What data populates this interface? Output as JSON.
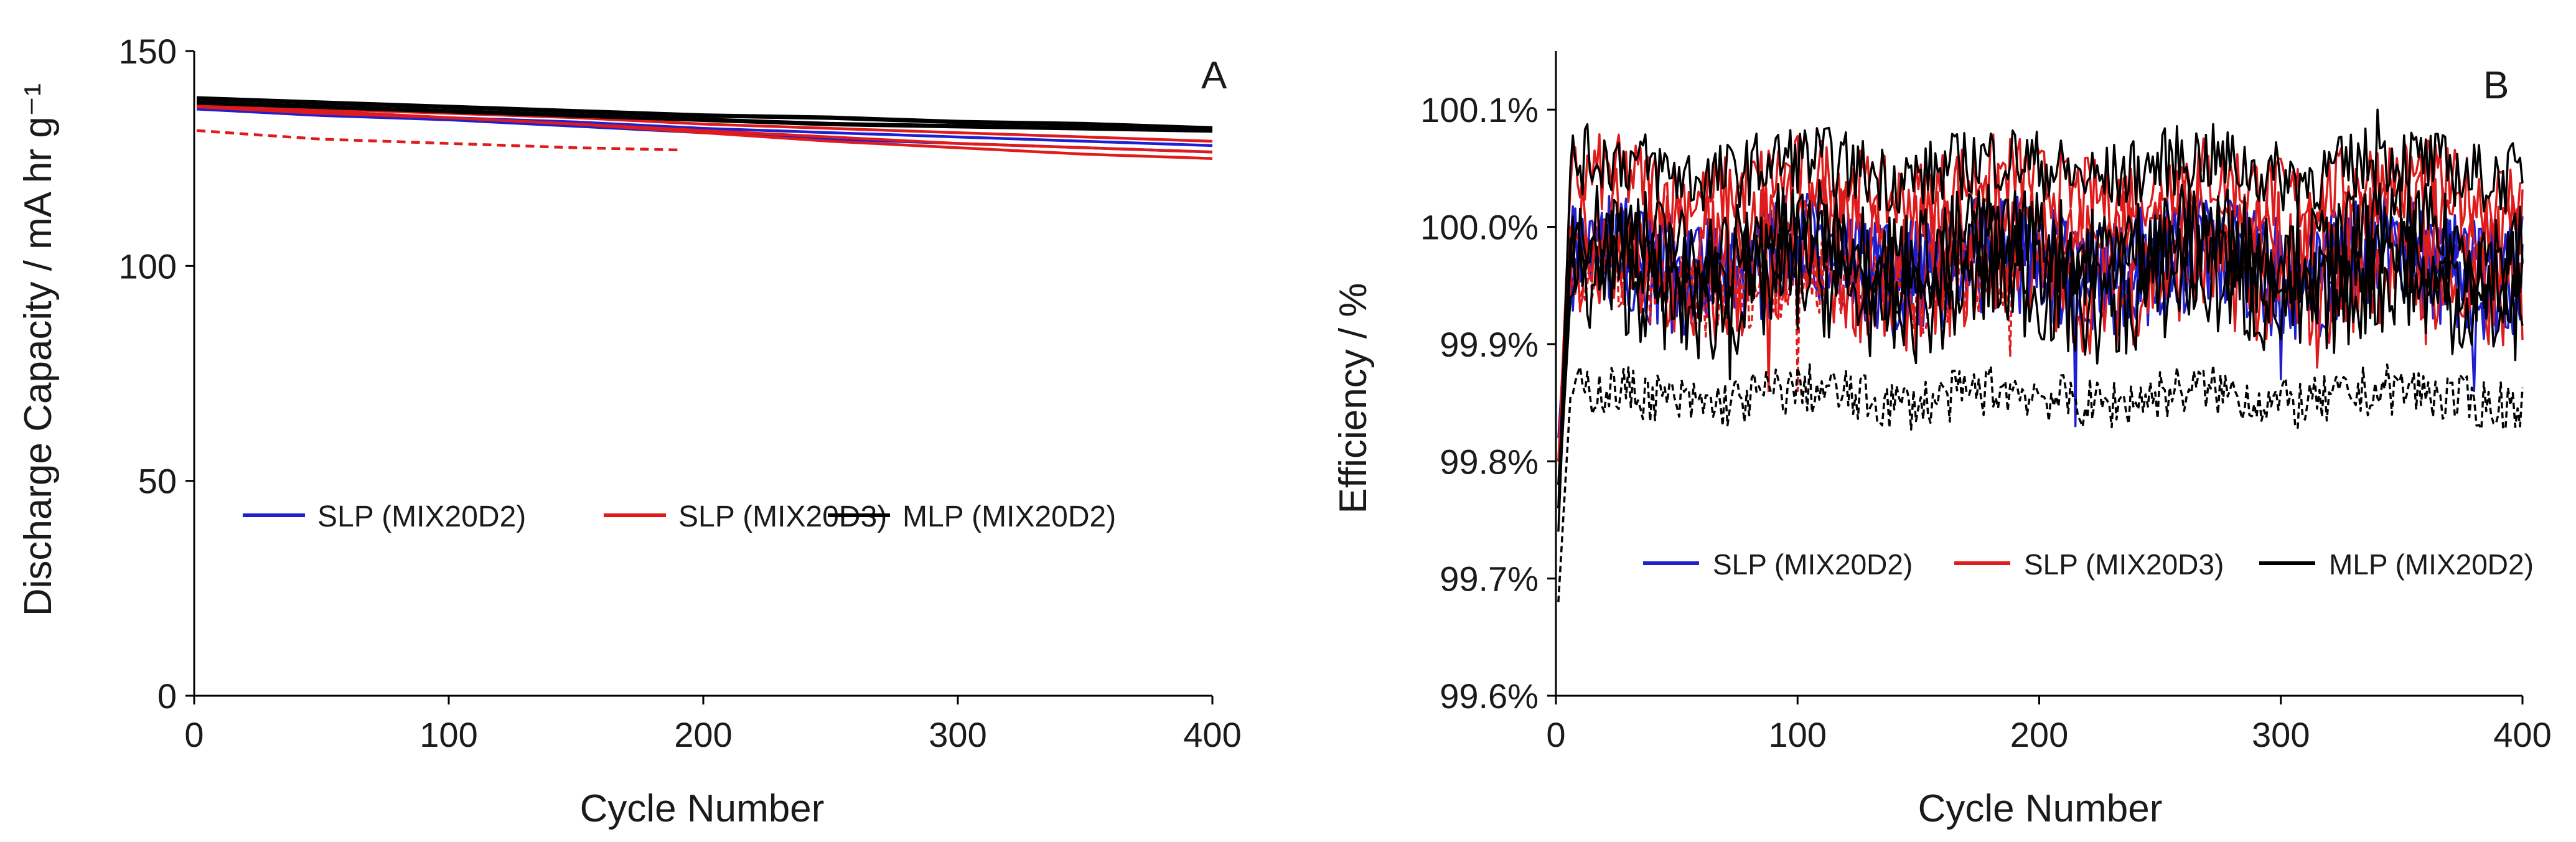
{
  "chart_data": [
    {
      "type": "line",
      "panel_label": "A",
      "xlabel": "Cycle Number",
      "ylabel": "Discharge Capacity / mA hr g⁻¹",
      "xlim": [
        0,
        400
      ],
      "ylim": [
        0,
        150
      ],
      "xticks": [
        0,
        100,
        200,
        300,
        400
      ],
      "yticks": [
        0,
        50,
        100,
        150
      ],
      "legend": {
        "placement": "center-left",
        "entries": [
          {
            "label": "SLP (MIX20D2)",
            "color": "#1f1fd1"
          },
          {
            "label": "SLP (MIX20D3)",
            "color": "#e01b1b"
          },
          {
            "label": "MLP (MIX20D2)",
            "color": "#000000"
          }
        ]
      },
      "series": [
        {
          "name": "SLP (MIX20D2)",
          "color": "#1f1fd1",
          "style": "solid",
          "x": [
            1,
            50,
            100,
            150,
            200,
            250,
            300,
            350,
            400
          ],
          "y": [
            136.5,
            135.0,
            134.0,
            132.5,
            131.0,
            129.5,
            128.5,
            127.5,
            126.5
          ]
        },
        {
          "name": "SLP (MIX20D2)",
          "color": "#1f1fd1",
          "style": "solid",
          "x": [
            1,
            50,
            100,
            150,
            200,
            250,
            300,
            350,
            400
          ],
          "y": [
            137.0,
            136.0,
            134.5,
            133.5,
            132.0,
            131.0,
            130.0,
            129.0,
            128.0
          ]
        },
        {
          "name": "SLP (MIX20D3)",
          "color": "#e01b1b",
          "style": "solid",
          "x": [
            1,
            50,
            100,
            150,
            200,
            250,
            300,
            350,
            400
          ],
          "y": [
            137.5,
            136.0,
            134.5,
            133.0,
            131.0,
            129.0,
            127.5,
            126.0,
            125.0
          ]
        },
        {
          "name": "SLP (MIX20D3)",
          "color": "#e01b1b",
          "style": "solid",
          "x": [
            1,
            50,
            100,
            150,
            200,
            250,
            300,
            350,
            400
          ],
          "y": [
            138.0,
            136.5,
            135.5,
            134.5,
            133.0,
            132.0,
            131.0,
            130.0,
            129.0
          ]
        },
        {
          "name": "SLP (MIX20D3)",
          "color": "#e01b1b",
          "style": "solid",
          "x": [
            1,
            50,
            100,
            150,
            200,
            250,
            300,
            350,
            400
          ],
          "y": [
            137.0,
            135.5,
            134.5,
            133.0,
            131.5,
            130.0,
            128.5,
            127.5,
            126.5
          ]
        },
        {
          "name": "SLP (MIX20D3)",
          "color": "#e01b1b",
          "style": "dashed",
          "x": [
            1,
            25,
            50,
            100,
            150,
            190
          ],
          "y": [
            131.5,
            130.5,
            129.5,
            128.5,
            127.5,
            127.0
          ]
        },
        {
          "name": "MLP (MIX20D2)",
          "color": "#000000",
          "style": "solid",
          "x": [
            1,
            50,
            100,
            150,
            200,
            250,
            300,
            350,
            400
          ],
          "y": [
            139.0,
            138.0,
            137.0,
            136.0,
            135.0,
            134.5,
            133.5,
            133.0,
            132.0
          ]
        },
        {
          "name": "MLP (MIX20D2)",
          "color": "#000000",
          "style": "solid",
          "x": [
            1,
            50,
            100,
            150,
            200,
            250,
            300,
            350,
            400
          ],
          "y": [
            138.0,
            137.0,
            136.0,
            135.0,
            134.0,
            133.0,
            132.5,
            132.0,
            131.5
          ]
        }
      ]
    },
    {
      "type": "line",
      "panel_label": "B",
      "xlabel": "Cycle Number",
      "ylabel": "Efficiency / %",
      "xlim": [
        0,
        400
      ],
      "ylim": [
        99.6,
        100.15
      ],
      "xticks": [
        0,
        100,
        200,
        300,
        400
      ],
      "ytick_values": [
        99.6,
        99.7,
        99.8,
        99.9,
        100.0,
        100.1
      ],
      "ytick_labels": [
        "99.6%",
        "99.7%",
        "99.8%",
        "99.9%",
        "100.0%",
        "100.1%"
      ],
      "legend": {
        "placement": "bottom-center",
        "entries": [
          {
            "label": "SLP (MIX20D2)",
            "color": "#1f1fd1"
          },
          {
            "label": "SLP (MIX20D3)",
            "color": "#e01b1b"
          },
          {
            "label": "MLP (MIX20D2)",
            "color": "#000000"
          }
        ]
      },
      "noise_seed": 7,
      "series": [
        {
          "name": "SLP (MIX20D2)",
          "color": "#1f1fd1",
          "style": "solid",
          "start": 99.78,
          "mean": 99.97,
          "amp": 0.045,
          "n": 400,
          "dips": [
            [
              215,
              99.83
            ],
            [
              300,
              99.87
            ],
            [
              140,
              99.9
            ]
          ]
        },
        {
          "name": "SLP (MIX20D2)",
          "color": "#1f1fd1",
          "style": "solid",
          "start": 99.8,
          "mean": 99.955,
          "amp": 0.04,
          "n": 400,
          "dips": [
            [
              380,
              99.86
            ]
          ]
        },
        {
          "name": "SLP (MIX20D2)",
          "color": "#1f1fd1",
          "style": "solid",
          "start": 99.82,
          "mean": 99.985,
          "amp": 0.035,
          "n": 400,
          "dips": []
        },
        {
          "name": "SLP (MIX20D3)",
          "color": "#e01b1b",
          "style": "solid",
          "start": 99.8,
          "mean": 100.035,
          "amp": 0.035,
          "n": 400,
          "dips": []
        },
        {
          "name": "SLP (MIX20D3)",
          "color": "#e01b1b",
          "style": "solid",
          "start": 99.78,
          "mean": 99.95,
          "amp": 0.045,
          "n": 400,
          "dips": [
            [
              88,
              99.86
            ],
            [
              315,
              99.88
            ]
          ]
        },
        {
          "name": "SLP (MIX20D3)",
          "color": "#e01b1b",
          "style": "solid",
          "start": 99.8,
          "mean": 100.0,
          "amp": 0.04,
          "n": 400,
          "dips": [
            [
              360,
              99.9
            ]
          ]
        },
        {
          "name": "SLP (MIX20D3)",
          "color": "#e01b1b",
          "style": "dashed",
          "start": 99.8,
          "mean": 99.95,
          "amp": 0.035,
          "n": 190,
          "dips": [
            [
              100,
              99.86
            ],
            [
              188,
              99.89
            ]
          ]
        },
        {
          "name": "MLP (MIX20D2)",
          "color": "#000000",
          "style": "solid",
          "start": 99.76,
          "mean": 100.05,
          "amp": 0.03,
          "n": 400,
          "dips": [
            [
              340,
              100.1
            ]
          ]
        },
        {
          "name": "MLP (MIX20D2)",
          "color": "#000000",
          "style": "solid",
          "start": 99.74,
          "mean": 99.99,
          "amp": 0.04,
          "n": 400,
          "dips": [
            [
              72,
              99.87
            ]
          ]
        },
        {
          "name": "MLP (MIX20D2)",
          "color": "#000000",
          "style": "solid",
          "start": 99.76,
          "mean": 99.94,
          "amp": 0.045,
          "n": 400,
          "dips": []
        },
        {
          "name": "MLP (MIX20D2)",
          "color": "#000000",
          "style": "solid",
          "start": 99.78,
          "mean": 99.97,
          "amp": 0.04,
          "n": 400,
          "dips": []
        },
        {
          "name": "MLP (MIX20D2)",
          "color": "#000000",
          "style": "dashed",
          "start": 99.68,
          "mean": 99.855,
          "amp": 0.022,
          "n": 400,
          "dips": [
            [
              390,
              99.84
            ]
          ]
        }
      ]
    }
  ]
}
